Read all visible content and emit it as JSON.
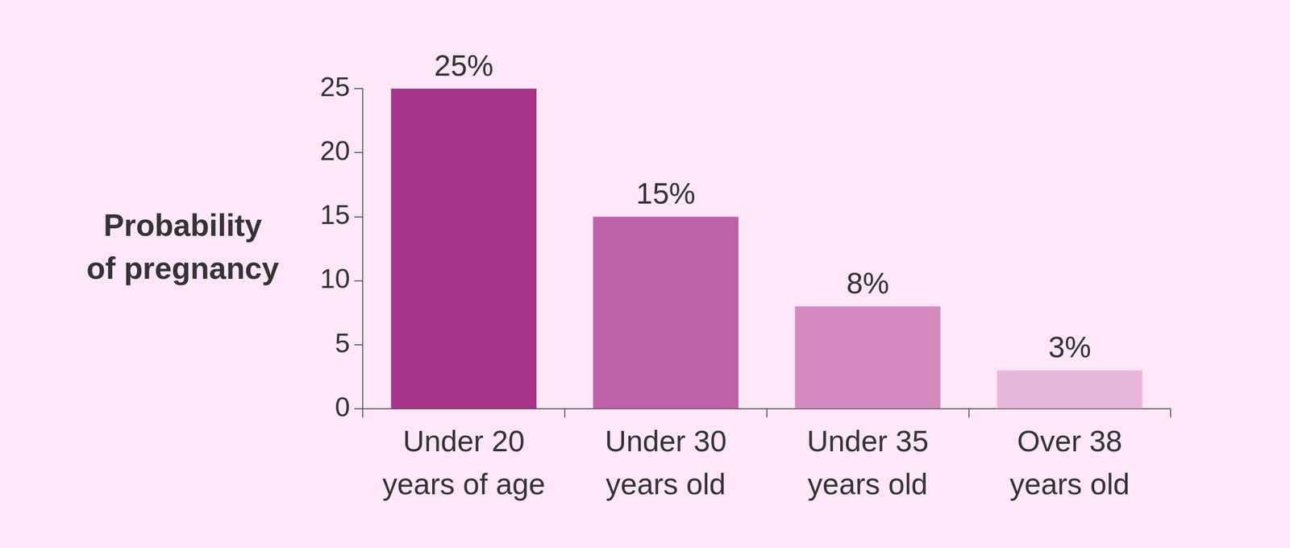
{
  "chart_data": {
    "type": "bar",
    "ylabel": [
      "Probability",
      "of pregnancy"
    ],
    "categories": [
      [
        "Under 20",
        "years of age"
      ],
      [
        "Under 30",
        "years old"
      ],
      [
        "Under 35",
        "years old"
      ],
      [
        "Over 38",
        "years old"
      ]
    ],
    "values": [
      25,
      15,
      8,
      3
    ],
    "value_labels": [
      "25%",
      "15%",
      "8%",
      "3%"
    ],
    "colors": [
      "#a8358a",
      "#be60a6",
      "#d48bc0",
      "#e8b8da"
    ],
    "ylim": [
      0,
      25
    ],
    "yticks": [
      0,
      5,
      10,
      15,
      20,
      25
    ],
    "grid": false,
    "data_labels": true
  }
}
